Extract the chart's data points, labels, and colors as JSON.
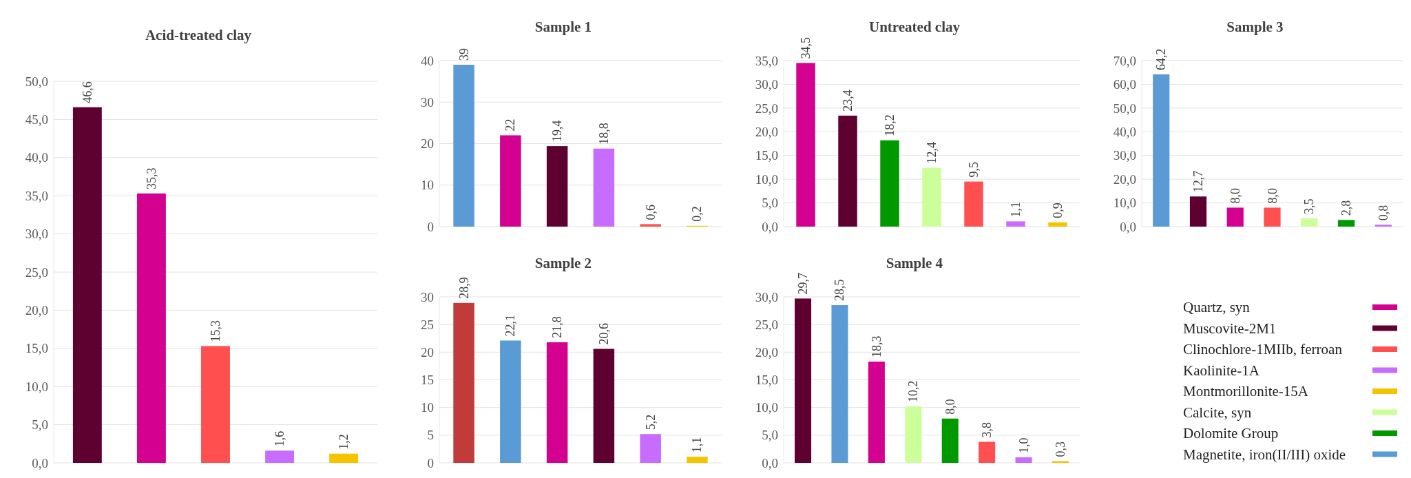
{
  "chart_data": [
    {
      "type": "bar",
      "title": "Acid-treated clay",
      "categories": [
        null,
        null,
        null,
        null,
        null
      ],
      "values": [
        46.6,
        35.3,
        15.3,
        1.6,
        1.2
      ],
      "colors": [
        "#5e0030",
        "#d4008f",
        "#ff4f4f",
        "#c86cff",
        "#f5c400"
      ],
      "value_labels": [
        "46,6",
        "35,3",
        "15,3",
        "1,6",
        "1,2"
      ],
      "ylim": [
        0,
        50
      ],
      "yticks": [
        {
          "value": 0,
          "label": "0,0"
        },
        {
          "value": 5,
          "label": "5,0"
        },
        {
          "value": 10,
          "label": "10,0"
        },
        {
          "value": 15,
          "label": "15,0"
        },
        {
          "value": 20,
          "label": "20,0"
        },
        {
          "value": 25,
          "label": "25,0"
        },
        {
          "value": 30,
          "label": "30,0"
        },
        {
          "value": 35,
          "label": "35,0"
        },
        {
          "value": 40,
          "label": "40,0"
        },
        {
          "value": 45,
          "label": "45,0"
        },
        {
          "value": 50,
          "label": "50,0"
        }
      ],
      "grid": "y"
    },
    {
      "type": "bar",
      "title": "Sample 1",
      "categories": [
        null,
        null,
        null,
        null,
        null,
        null
      ],
      "values": [
        39,
        22,
        19.4,
        18.8,
        0.6,
        0.2
      ],
      "colors": [
        "#5b9bd5",
        "#d4008f",
        "#5e0030",
        "#c86cff",
        "#ff4f4f",
        "#f5c400"
      ],
      "value_labels": [
        "39",
        "22",
        "19,4",
        "18,8",
        "0,6",
        "0,2"
      ],
      "ylim": [
        0,
        40
      ],
      "yticks": [
        0,
        10,
        20,
        30,
        40
      ],
      "grid": "y"
    },
    {
      "type": "bar",
      "title": "Untreated clay",
      "categories": [
        null,
        null,
        null,
        null,
        null,
        null,
        null
      ],
      "values": [
        34.5,
        23.4,
        18.2,
        12.4,
        9.5,
        1.1,
        0.9
      ],
      "colors": [
        "#d4008f",
        "#5e0030",
        "#009900",
        "#ccff99",
        "#ff4f4f",
        "#c86cff",
        "#f5c400"
      ],
      "value_labels": [
        "34,5",
        "23,4",
        "18,2",
        "12,4",
        "9,5",
        "1,1",
        "0,9"
      ],
      "ylim": [
        0,
        35
      ],
      "yticks": [
        {
          "value": 0,
          "label": "0,0"
        },
        {
          "value": 5,
          "label": "5,0"
        },
        {
          "value": 10,
          "label": "10,0"
        },
        {
          "value": 15,
          "label": "15,0"
        },
        {
          "value": 20,
          "label": "20,0"
        },
        {
          "value": 25,
          "label": "25,0"
        },
        {
          "value": 30,
          "label": "30,0"
        },
        {
          "value": 35,
          "label": "35,0"
        }
      ],
      "grid": "y"
    },
    {
      "type": "bar",
      "title": "Sample 3",
      "categories": [
        null,
        null,
        null,
        null,
        null,
        null,
        null
      ],
      "values": [
        64.2,
        12.7,
        8.0,
        8.0,
        3.5,
        2.8,
        0.8
      ],
      "colors": [
        "#5b9bd5",
        "#5e0030",
        "#d4008f",
        "#ff4f4f",
        "#ccff99",
        "#009900",
        "#c86cff"
      ],
      "value_labels": [
        "64,2",
        "12,7",
        "8,0",
        "8,0",
        "3,5",
        "2,8",
        "0,8"
      ],
      "ylim": [
        0,
        70
      ],
      "yticks": [
        {
          "value": 0,
          "label": "0,0"
        },
        {
          "value": 10,
          "label": "10,0"
        },
        {
          "value": 20,
          "label": "20,0"
        },
        {
          "value": 30,
          "label": "30,0"
        },
        {
          "value": 40,
          "label": "40,0"
        },
        {
          "value": 50,
          "label": "50,0"
        },
        {
          "value": 60,
          "label": "60,0"
        },
        {
          "value": 70,
          "label": "70,0"
        }
      ],
      "grid": "y"
    },
    {
      "type": "bar",
      "title": "Sample 2",
      "categories": [
        null,
        null,
        null,
        null,
        null,
        null
      ],
      "values": [
        28.9,
        22.1,
        21.8,
        20.6,
        5.2,
        1.1
      ],
      "colors": [
        "#c23b3b",
        "#5b9bd5",
        "#d4008f",
        "#5e0030",
        "#c86cff",
        "#f5c400"
      ],
      "value_labels": [
        "28,9",
        "22,1",
        "21,8",
        "20,6",
        "5,2",
        "1,1"
      ],
      "ylim": [
        0,
        30
      ],
      "yticks": [
        0,
        5,
        10,
        15,
        20,
        25,
        30
      ],
      "grid": "y"
    },
    {
      "type": "bar",
      "title": "Sample 4",
      "categories": [
        null,
        null,
        null,
        null,
        null,
        null,
        null,
        null
      ],
      "values": [
        29.7,
        28.5,
        18.3,
        10.2,
        8.0,
        3.8,
        1.0,
        0.3
      ],
      "colors": [
        "#5e0030",
        "#5b9bd5",
        "#d4008f",
        "#ccff99",
        "#009900",
        "#ff4f4f",
        "#c86cff",
        "#f5c400"
      ],
      "value_labels": [
        "29,7",
        "28,5",
        "18,3",
        "10,2",
        "8,0",
        "3,8",
        "1,0",
        "0,3"
      ],
      "ylim": [
        0,
        30
      ],
      "yticks": [
        {
          "value": 0,
          "label": "0,0"
        },
        {
          "value": 5,
          "label": "5,0"
        },
        {
          "value": 10,
          "label": "10,0"
        },
        {
          "value": 15,
          "label": "15,0"
        },
        {
          "value": 20,
          "label": "20,0"
        },
        {
          "value": 25,
          "label": "25,0"
        },
        {
          "value": 30,
          "label": "30,0"
        }
      ],
      "grid": "y"
    },
    {
      "type": "other",
      "categories": [
        "Quartz, syn",
        "Muscovite-2M1",
        "Clinochlore-1MIIb, ferroan",
        "Kaolinite-1A",
        "Montmorillonite-15A",
        "Calcite, syn",
        "Dolomite Group",
        "Magnetite, iron(II/III) oxide"
      ],
      "colors": [
        "#d4008f",
        "#5e0030",
        "#ff4f4f",
        "#c86cff",
        "#f5c400",
        "#ccff99",
        "#009900",
        "#5b9bd5"
      ]
    }
  ]
}
